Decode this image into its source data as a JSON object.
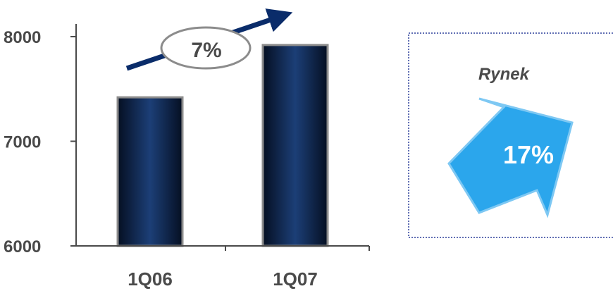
{
  "chart_data": {
    "type": "bar",
    "categories": [
      "1Q06",
      "1Q07"
    ],
    "values": [
      7420,
      7920
    ],
    "ylim": [
      6000,
      8300
    ],
    "yticks": [
      "6000",
      "7000",
      "8000"
    ],
    "grid": false,
    "colors": {
      "bar_dark": "#050f22",
      "bar_light": "#1c3f77",
      "bar_border": "#8c8c8c",
      "axis": "#4a4a4a",
      "growth_arrow": "#0a2c6a",
      "growth_ellipse_stroke": "#8c8c8c",
      "market_arrow": "#2ba6ec",
      "market_arrow_stroke": "#7ec8f3",
      "market_box_border": "#2b3f9a"
    }
  },
  "growth": {
    "label": "7%",
    "icon": "up-right-arrow-icon"
  },
  "market": {
    "title": "Rynek",
    "value": "17%",
    "icon": "up-right-arrow-icon"
  }
}
